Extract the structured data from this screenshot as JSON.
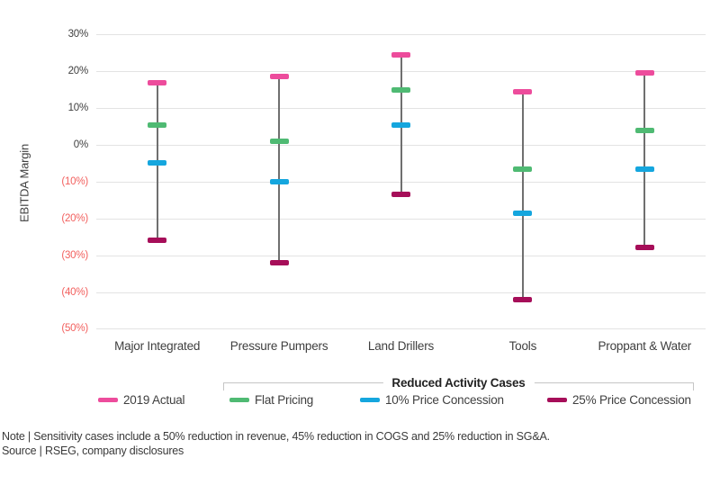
{
  "chart_data": {
    "type": "scatter",
    "variant": "range-whisker-with-tick-markers",
    "title": "",
    "ylabel": "EBITDA Margin",
    "xlabel": "",
    "categories": [
      "Major Integrated",
      "Pressure Pumpers",
      "Land Drillers",
      "Tools",
      "Proppant & Water"
    ],
    "series": [
      {
        "name": "2019 Actual",
        "color": "#ed4c9c",
        "values": [
          17,
          18.5,
          24.5,
          14.5,
          19.5
        ]
      },
      {
        "name": "Flat Pricing",
        "color": "#4fba73",
        "values": [
          5.5,
          1,
          15,
          -6.5,
          4
        ]
      },
      {
        "name": "10% Price Concession",
        "color": "#15a6de",
        "values": [
          -5,
          -10,
          5.5,
          -18.5,
          -6.5
        ]
      },
      {
        "name": "25% Price Concession",
        "color": "#a60e59",
        "values": [
          -26,
          -32,
          -13.5,
          -42,
          -28
        ]
      }
    ],
    "ylim": [
      -50,
      30
    ],
    "yticks": [
      {
        "value": 30,
        "label": "30%"
      },
      {
        "value": 20,
        "label": "20%"
      },
      {
        "value": 10,
        "label": "10%"
      },
      {
        "value": 0,
        "label": "0%"
      },
      {
        "value": -10,
        "label": "(10%)"
      },
      {
        "value": -20,
        "label": "(20%)"
      },
      {
        "value": -30,
        "label": "(30%)"
      },
      {
        "value": -40,
        "label": "(40%)"
      },
      {
        "value": -50,
        "label": "(50%)"
      }
    ],
    "grid": true,
    "legend_position": "bottom",
    "legend_group": {
      "label": "Reduced Activity Cases",
      "applies_to": [
        "Flat Pricing",
        "10% Price Concession",
        "25% Price Concession"
      ]
    },
    "colors": {
      "negative_tick_text": "#f2605e",
      "positive_tick_text": "#404040",
      "whisker": "#6f6f6f",
      "gridline": "#e3e3e3"
    }
  },
  "footer": {
    "note": "Note | Sensitivity cases include a 50% reduction in revenue, 45% reduction in COGS and 25% reduction in SG&A.",
    "source": "Source | RSEG, company disclosures"
  }
}
